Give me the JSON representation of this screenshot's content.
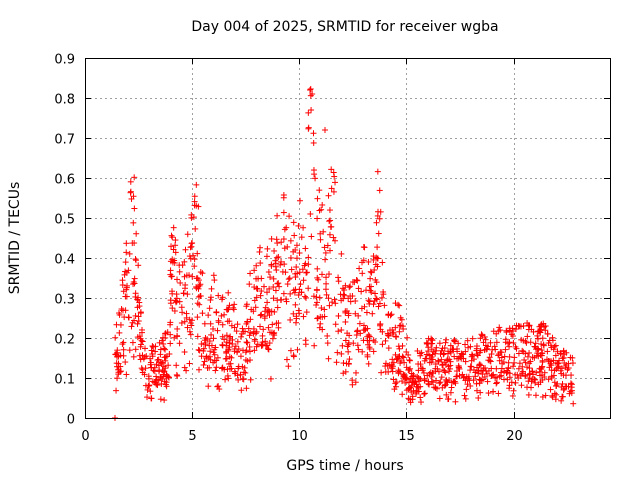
{
  "chart_data": {
    "type": "scatter",
    "title": "Day 004 of 2025, SRMTID for receiver wgba",
    "xlabel": "GPS time / hours",
    "ylabel": "SRMTID / TECUs",
    "xlim": [
      0,
      24.5
    ],
    "ylim": [
      0,
      0.9
    ],
    "xticks": [
      0,
      5,
      10,
      15,
      20
    ],
    "yticks": [
      0,
      0.1,
      0.2,
      0.3,
      0.4,
      0.5,
      0.6,
      0.7,
      0.8,
      0.9
    ],
    "marker": "+",
    "color": "#ff0000",
    "grid": true,
    "series": [
      {
        "name": "SRMTID",
        "envelope": {
          "x": [
            1.4,
            1.6,
            1.9,
            2.1,
            2.3,
            2.5,
            2.7,
            3.0,
            3.3,
            3.6,
            3.9,
            4.1,
            4.3,
            4.6,
            4.9,
            5.2,
            5.4,
            5.7,
            6.0,
            6.3,
            6.6,
            7.0,
            7.3,
            7.6,
            8.0,
            8.4,
            8.8,
            9.2,
            9.6,
            10.0,
            10.3,
            10.5,
            10.7,
            11.0,
            11.3,
            11.6,
            11.9,
            12.2,
            12.6,
            13.0,
            13.4,
            13.7,
            14.0,
            14.4,
            14.8,
            15.2,
            15.6,
            16.0,
            16.5,
            17.0,
            17.5,
            18.0,
            18.5,
            19.0,
            19.5,
            20.0,
            20.5,
            21.0,
            21.5,
            22.0,
            22.5,
            22.8
          ],
          "y": [
            0.15,
            0.19,
            0.3,
            0.4,
            0.44,
            0.25,
            0.13,
            0.12,
            0.13,
            0.14,
            0.16,
            0.4,
            0.26,
            0.28,
            0.35,
            0.44,
            0.28,
            0.18,
            0.25,
            0.2,
            0.24,
            0.2,
            0.14,
            0.24,
            0.32,
            0.3,
            0.32,
            0.4,
            0.34,
            0.4,
            0.35,
            0.72,
            0.5,
            0.38,
            0.4,
            0.45,
            0.3,
            0.22,
            0.25,
            0.3,
            0.25,
            0.45,
            0.2,
            0.22,
            0.18,
            0.11,
            0.12,
            0.14,
            0.13,
            0.14,
            0.13,
            0.14,
            0.15,
            0.15,
            0.16,
            0.16,
            0.18,
            0.15,
            0.17,
            0.13,
            0.12,
            0.11
          ]
        },
        "outliers": [
          [
            1.4,
            0.0
          ],
          [
            10.5,
            0.82
          ],
          [
            10.6,
            0.81
          ],
          [
            10.55,
            0.77
          ],
          [
            11.2,
            0.72
          ]
        ]
      }
    ]
  }
}
